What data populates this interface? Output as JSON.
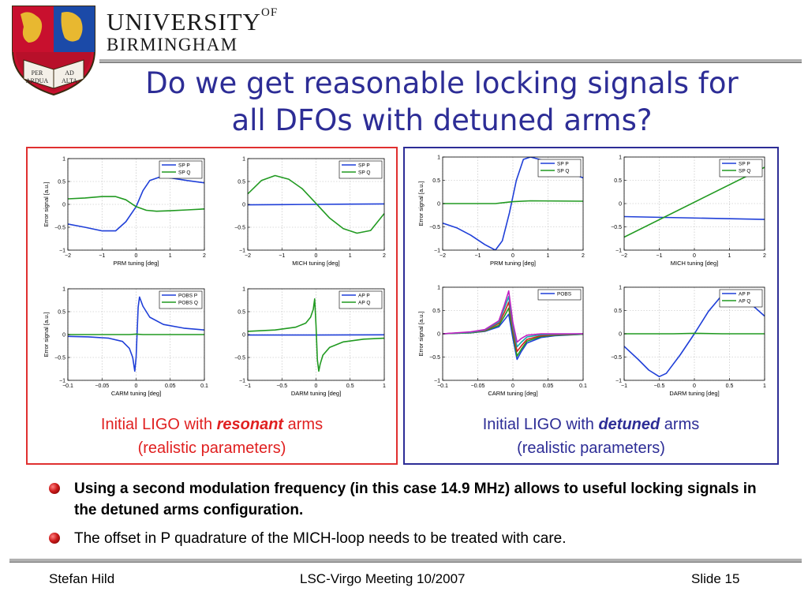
{
  "header": {
    "university_line1": "UNIVERSITY",
    "university_of": "OF",
    "university_line2": "BIRMINGHAM",
    "crest_motto": [
      "PER",
      "AD",
      "ARDUA",
      "ALTA"
    ]
  },
  "slide": {
    "title_line1": "Do we get reasonable locking signals for",
    "title_line2": "all DFOs with detuned arms?"
  },
  "panels": [
    {
      "caption_prefix": "Initial LIGO with ",
      "caption_emph": "resonant",
      "caption_suffix": " arms",
      "caption_line2": "(realistic parameters)",
      "accent_color": "#e03030"
    },
    {
      "caption_prefix": "Initial LIGO with ",
      "caption_emph": "detuned",
      "caption_suffix": " arms",
      "caption_line2": "(realistic parameters)",
      "accent_color": "#2d2d96"
    }
  ],
  "bullets": [
    "Using a second modulation frequency (in this case 14.9 MHz) allows to useful locking signals in the detuned arms configuration.",
    "The offset in P quadrature of the MICH-loop needs to be treated with care."
  ],
  "footer": {
    "left": "Stefan Hild",
    "center": "LSC-Virgo Meeting 10/2007",
    "right": "Slide 15"
  },
  "chart_data": [
    {
      "type": "line",
      "xlabel": "PRM tuning [deg]",
      "ylabel": "Error signal [a.u.]",
      "xlim": [
        -2,
        2
      ],
      "ylim": [
        -1,
        1
      ],
      "xticks": [
        -2,
        -1,
        0,
        1,
        2
      ],
      "xtick_labels": [
        "−2",
        "−1",
        "0",
        "1",
        "2"
      ],
      "yticks": [
        -1,
        -0.5,
        0,
        0.5,
        1
      ],
      "ytick_labels": [
        "−1",
        "−0.5",
        "0",
        "0.5",
        "1"
      ],
      "legend": "top-right",
      "series": [
        {
          "name": "SP P",
          "color": "#1f3fd8",
          "x": [
            -2,
            -1.5,
            -1,
            -0.6,
            -0.3,
            0,
            0.2,
            0.4,
            0.7,
            1,
            1.5,
            2
          ],
          "y": [
            -0.43,
            -0.5,
            -0.58,
            -0.58,
            -0.38,
            -0.05,
            0.3,
            0.52,
            0.6,
            0.58,
            0.52,
            0.47
          ]
        },
        {
          "name": "SP Q",
          "color": "#219a21",
          "x": [
            -2,
            -1.5,
            -1,
            -0.6,
            -0.3,
            0,
            0.3,
            0.6,
            1,
            1.5,
            2
          ],
          "y": [
            0.12,
            0.14,
            0.17,
            0.17,
            0.1,
            -0.05,
            -0.13,
            -0.15,
            -0.14,
            -0.12,
            -0.1
          ]
        }
      ]
    },
    {
      "type": "line",
      "xlabel": "MICH tuning [deg]",
      "ylabel": "",
      "xlim": [
        -2,
        2
      ],
      "ylim": [
        -1,
        1
      ],
      "xticks": [
        -2,
        -1,
        0,
        1,
        2
      ],
      "xtick_labels": [
        "−2",
        "−1",
        "0",
        "1",
        "2"
      ],
      "yticks": [
        -1,
        -0.5,
        0,
        0.5,
        1
      ],
      "ytick_labels": [
        "−1",
        "−0.5",
        "0",
        "0.5",
        "1"
      ],
      "legend": "top-right",
      "series": [
        {
          "name": "SP P",
          "color": "#1f3fd8",
          "x": [
            -2,
            -1,
            0,
            1,
            2
          ],
          "y": [
            -0.01,
            -0.005,
            0.0,
            0.005,
            0.01
          ]
        },
        {
          "name": "SP Q",
          "color": "#219a21",
          "x": [
            -2,
            -1.6,
            -1.2,
            -0.8,
            -0.4,
            0,
            0.4,
            0.8,
            1.2,
            1.6,
            2
          ],
          "y": [
            0.23,
            0.52,
            0.63,
            0.55,
            0.34,
            0.02,
            -0.3,
            -0.53,
            -0.63,
            -0.57,
            -0.2
          ]
        }
      ]
    },
    {
      "type": "line",
      "xlabel": "CARM tuning [deg]",
      "ylabel": "Error signal [a.u.]",
      "xlim": [
        -0.1,
        0.1
      ],
      "ylim": [
        -1,
        1
      ],
      "xticks": [
        -0.1,
        -0.05,
        0,
        0.05,
        0.1
      ],
      "xtick_labels": [
        "−0.1",
        "−0.05",
        "0",
        "0.05",
        "0.1"
      ],
      "yticks": [
        -1,
        -0.5,
        0,
        0.5,
        1
      ],
      "ytick_labels": [
        "−1",
        "−0.5",
        "0",
        "0.5",
        "1"
      ],
      "legend": "top-right",
      "series": [
        {
          "name": "POBS P",
          "color": "#1f3fd8",
          "x": [
            -0.1,
            -0.07,
            -0.04,
            -0.02,
            -0.01,
            -0.005,
            -0.002,
            0,
            0.003,
            0.005,
            0.01,
            0.02,
            0.04,
            0.07,
            0.1
          ],
          "y": [
            -0.04,
            -0.05,
            -0.08,
            -0.15,
            -0.3,
            -0.5,
            -0.8,
            -0.5,
            0.6,
            0.82,
            0.62,
            0.38,
            0.22,
            0.14,
            0.1
          ]
        },
        {
          "name": "POBS Q",
          "color": "#219a21",
          "x": [
            -0.1,
            -0.01,
            0,
            0.01,
            0.1
          ],
          "y": [
            0.0,
            0.0,
            0.01,
            0.0,
            0.0
          ]
        }
      ]
    },
    {
      "type": "line",
      "xlabel": "DARM tuning [deg]",
      "ylabel": "",
      "xlim": [
        -1,
        1
      ],
      "ylim": [
        -1,
        1
      ],
      "xticks": [
        -1,
        -0.5,
        0,
        0.5,
        1
      ],
      "xtick_labels": [
        "−1",
        "−0.5",
        "0",
        "0.5",
        "1"
      ],
      "yticks": [
        -1,
        -0.5,
        0,
        0.5,
        1
      ],
      "ytick_labels": [
        "−1",
        "−0.5",
        "0",
        "0.5",
        "1"
      ],
      "legend": "top-right",
      "series": [
        {
          "name": "AP P",
          "color": "#1f3fd8",
          "x": [
            -1,
            0,
            1
          ],
          "y": [
            -0.01,
            -0.01,
            -0.005
          ]
        },
        {
          "name": "AP Q",
          "color": "#219a21",
          "x": [
            -1,
            -0.6,
            -0.3,
            -0.15,
            -0.08,
            -0.04,
            -0.02,
            0,
            0.02,
            0.04,
            0.06,
            0.1,
            0.2,
            0.4,
            0.7,
            1
          ],
          "y": [
            0.07,
            0.1,
            0.16,
            0.25,
            0.38,
            0.55,
            0.78,
            0.2,
            -0.55,
            -0.8,
            -0.65,
            -0.45,
            -0.28,
            -0.16,
            -0.1,
            -0.08
          ]
        }
      ]
    },
    {
      "type": "line",
      "xlabel": "PRM tuning [deg]",
      "ylabel": "Error signal [a.u.]",
      "xlim": [
        -2,
        2
      ],
      "ylim": [
        -1,
        1
      ],
      "xticks": [
        -2,
        -1,
        0,
        1,
        2
      ],
      "xtick_labels": [
        "−2",
        "−1",
        "0",
        "1",
        "2"
      ],
      "yticks": [
        -1,
        -0.5,
        0,
        0.5,
        1
      ],
      "ytick_labels": [
        "−1",
        "−0.5",
        "0",
        "0.5",
        "1"
      ],
      "legend": "top-right",
      "series": [
        {
          "name": "SP P",
          "color": "#1f3fd8",
          "x": [
            -2,
            -1.6,
            -1.2,
            -0.8,
            -0.5,
            -0.3,
            -0.1,
            0.1,
            0.3,
            0.5,
            0.8,
            1.2,
            1.6,
            2
          ],
          "y": [
            -0.42,
            -0.52,
            -0.68,
            -0.88,
            -1.0,
            -0.8,
            -0.2,
            0.5,
            0.95,
            1.0,
            0.94,
            0.82,
            0.68,
            0.55
          ]
        },
        {
          "name": "SP Q",
          "color": "#219a21",
          "x": [
            -2,
            -0.5,
            0,
            0.5,
            2
          ],
          "y": [
            0.0,
            0.0,
            0.04,
            0.06,
            0.05
          ]
        }
      ]
    },
    {
      "type": "line",
      "xlabel": "MICH tuning [deg]",
      "ylabel": "",
      "xlim": [
        -2,
        2
      ],
      "ylim": [
        -1,
        1
      ],
      "xticks": [
        -2,
        -1,
        0,
        1,
        2
      ],
      "xtick_labels": [
        "−2",
        "−1",
        "0",
        "1",
        "2"
      ],
      "yticks": [
        -1,
        -0.5,
        0,
        0.5,
        1
      ],
      "ytick_labels": [
        "−1",
        "−0.5",
        "0",
        "0.5",
        "1"
      ],
      "legend": "top-right",
      "series": [
        {
          "name": "SP P",
          "color": "#1f3fd8",
          "x": [
            -2,
            2
          ],
          "y": [
            -0.28,
            -0.34
          ]
        },
        {
          "name": "SP Q",
          "color": "#219a21",
          "x": [
            -2,
            2
          ],
          "y": [
            -0.72,
            0.78
          ]
        }
      ]
    },
    {
      "type": "line",
      "xlabel": "CARM tuning [deg]",
      "ylabel": "Error signal [a.u.]",
      "xlim": [
        -0.1,
        0.1
      ],
      "ylim": [
        -1,
        1
      ],
      "xticks": [
        -0.1,
        -0.05,
        0,
        0.05,
        0.1
      ],
      "xtick_labels": [
        "−0.1",
        "−0.05",
        "0",
        "0.05",
        "0.1"
      ],
      "yticks": [
        -1,
        -0.5,
        0,
        0.5,
        1
      ],
      "ytick_labels": [
        "−1",
        "−0.5",
        "0",
        "0.5",
        "1"
      ],
      "legend": "top-right",
      "series": [
        {
          "name": "POBS",
          "color": "#1f3fd8",
          "x": [
            -0.1,
            -0.06,
            -0.04,
            -0.02,
            -0.012,
            -0.006,
            0,
            0.006,
            0.012,
            0.02,
            0.04,
            0.06,
            0.1
          ],
          "y": [
            0.0,
            0.02,
            0.05,
            0.15,
            0.3,
            0.42,
            -0.1,
            -0.55,
            -0.38,
            -0.2,
            -0.08,
            -0.04,
            -0.01
          ]
        },
        {
          "name": "",
          "color": "#219a21",
          "x": [
            -0.1,
            -0.06,
            -0.04,
            -0.02,
            -0.012,
            -0.006,
            0,
            0.006,
            0.012,
            0.02,
            0.04,
            0.06,
            0.1
          ],
          "y": [
            0.0,
            0.02,
            0.06,
            0.18,
            0.38,
            0.55,
            0.0,
            -0.48,
            -0.33,
            -0.16,
            -0.06,
            -0.03,
            -0.01
          ]
        },
        {
          "name": "",
          "color": "#d42020",
          "x": [
            -0.1,
            -0.06,
            -0.04,
            -0.02,
            -0.012,
            -0.006,
            0,
            0.006,
            0.012,
            0.02,
            0.04,
            0.06,
            0.1
          ],
          "y": [
            0.0,
            0.03,
            0.07,
            0.22,
            0.46,
            0.68,
            0.08,
            -0.38,
            -0.26,
            -0.12,
            -0.04,
            -0.02,
            0.0
          ]
        },
        {
          "name": "",
          "color": "#18a8a8",
          "x": [
            -0.1,
            -0.06,
            -0.04,
            -0.02,
            -0.012,
            -0.006,
            0,
            0.006,
            0.012,
            0.02,
            0.04,
            0.06,
            0.1
          ],
          "y": [
            0.0,
            0.03,
            0.08,
            0.25,
            0.55,
            0.8,
            0.16,
            -0.28,
            -0.18,
            -0.07,
            -0.02,
            -0.01,
            0.0
          ]
        },
        {
          "name": "",
          "color": "#c020c0",
          "x": [
            -0.1,
            -0.06,
            -0.04,
            -0.02,
            -0.012,
            -0.006,
            0,
            0.006,
            0.012,
            0.02,
            0.04,
            0.06,
            0.1
          ],
          "y": [
            0.0,
            0.04,
            0.09,
            0.28,
            0.62,
            0.92,
            0.24,
            -0.18,
            -0.1,
            -0.03,
            0.0,
            0.0,
            0.0
          ]
        }
      ]
    },
    {
      "type": "line",
      "xlabel": "DARM tuning [deg]",
      "ylabel": "",
      "xlim": [
        -1,
        1
      ],
      "ylim": [
        -1,
        1
      ],
      "xticks": [
        -1,
        -0.5,
        0,
        0.5,
        1
      ],
      "xtick_labels": [
        "−1",
        "−0.5",
        "0",
        "0.5",
        "1"
      ],
      "yticks": [
        -1,
        -0.5,
        0,
        0.5,
        1
      ],
      "ytick_labels": [
        "−1",
        "−0.5",
        "0",
        "0.5",
        "1"
      ],
      "legend": "top-right",
      "series": [
        {
          "name": "AP P",
          "color": "#1f3fd8",
          "x": [
            -1,
            -0.8,
            -0.65,
            -0.5,
            -0.4,
            -0.2,
            0,
            0.2,
            0.4,
            0.5,
            0.6,
            0.7,
            0.85,
            1
          ],
          "y": [
            -0.27,
            -0.55,
            -0.78,
            -0.92,
            -0.85,
            -0.45,
            0.0,
            0.48,
            0.84,
            0.92,
            0.88,
            0.78,
            0.58,
            0.38
          ]
        },
        {
          "name": "AP Q",
          "color": "#219a21",
          "x": [
            -1,
            -0.3,
            0,
            0.4,
            1
          ],
          "y": [
            0.0,
            0.0,
            0.01,
            0.0,
            0.0
          ]
        }
      ]
    }
  ]
}
